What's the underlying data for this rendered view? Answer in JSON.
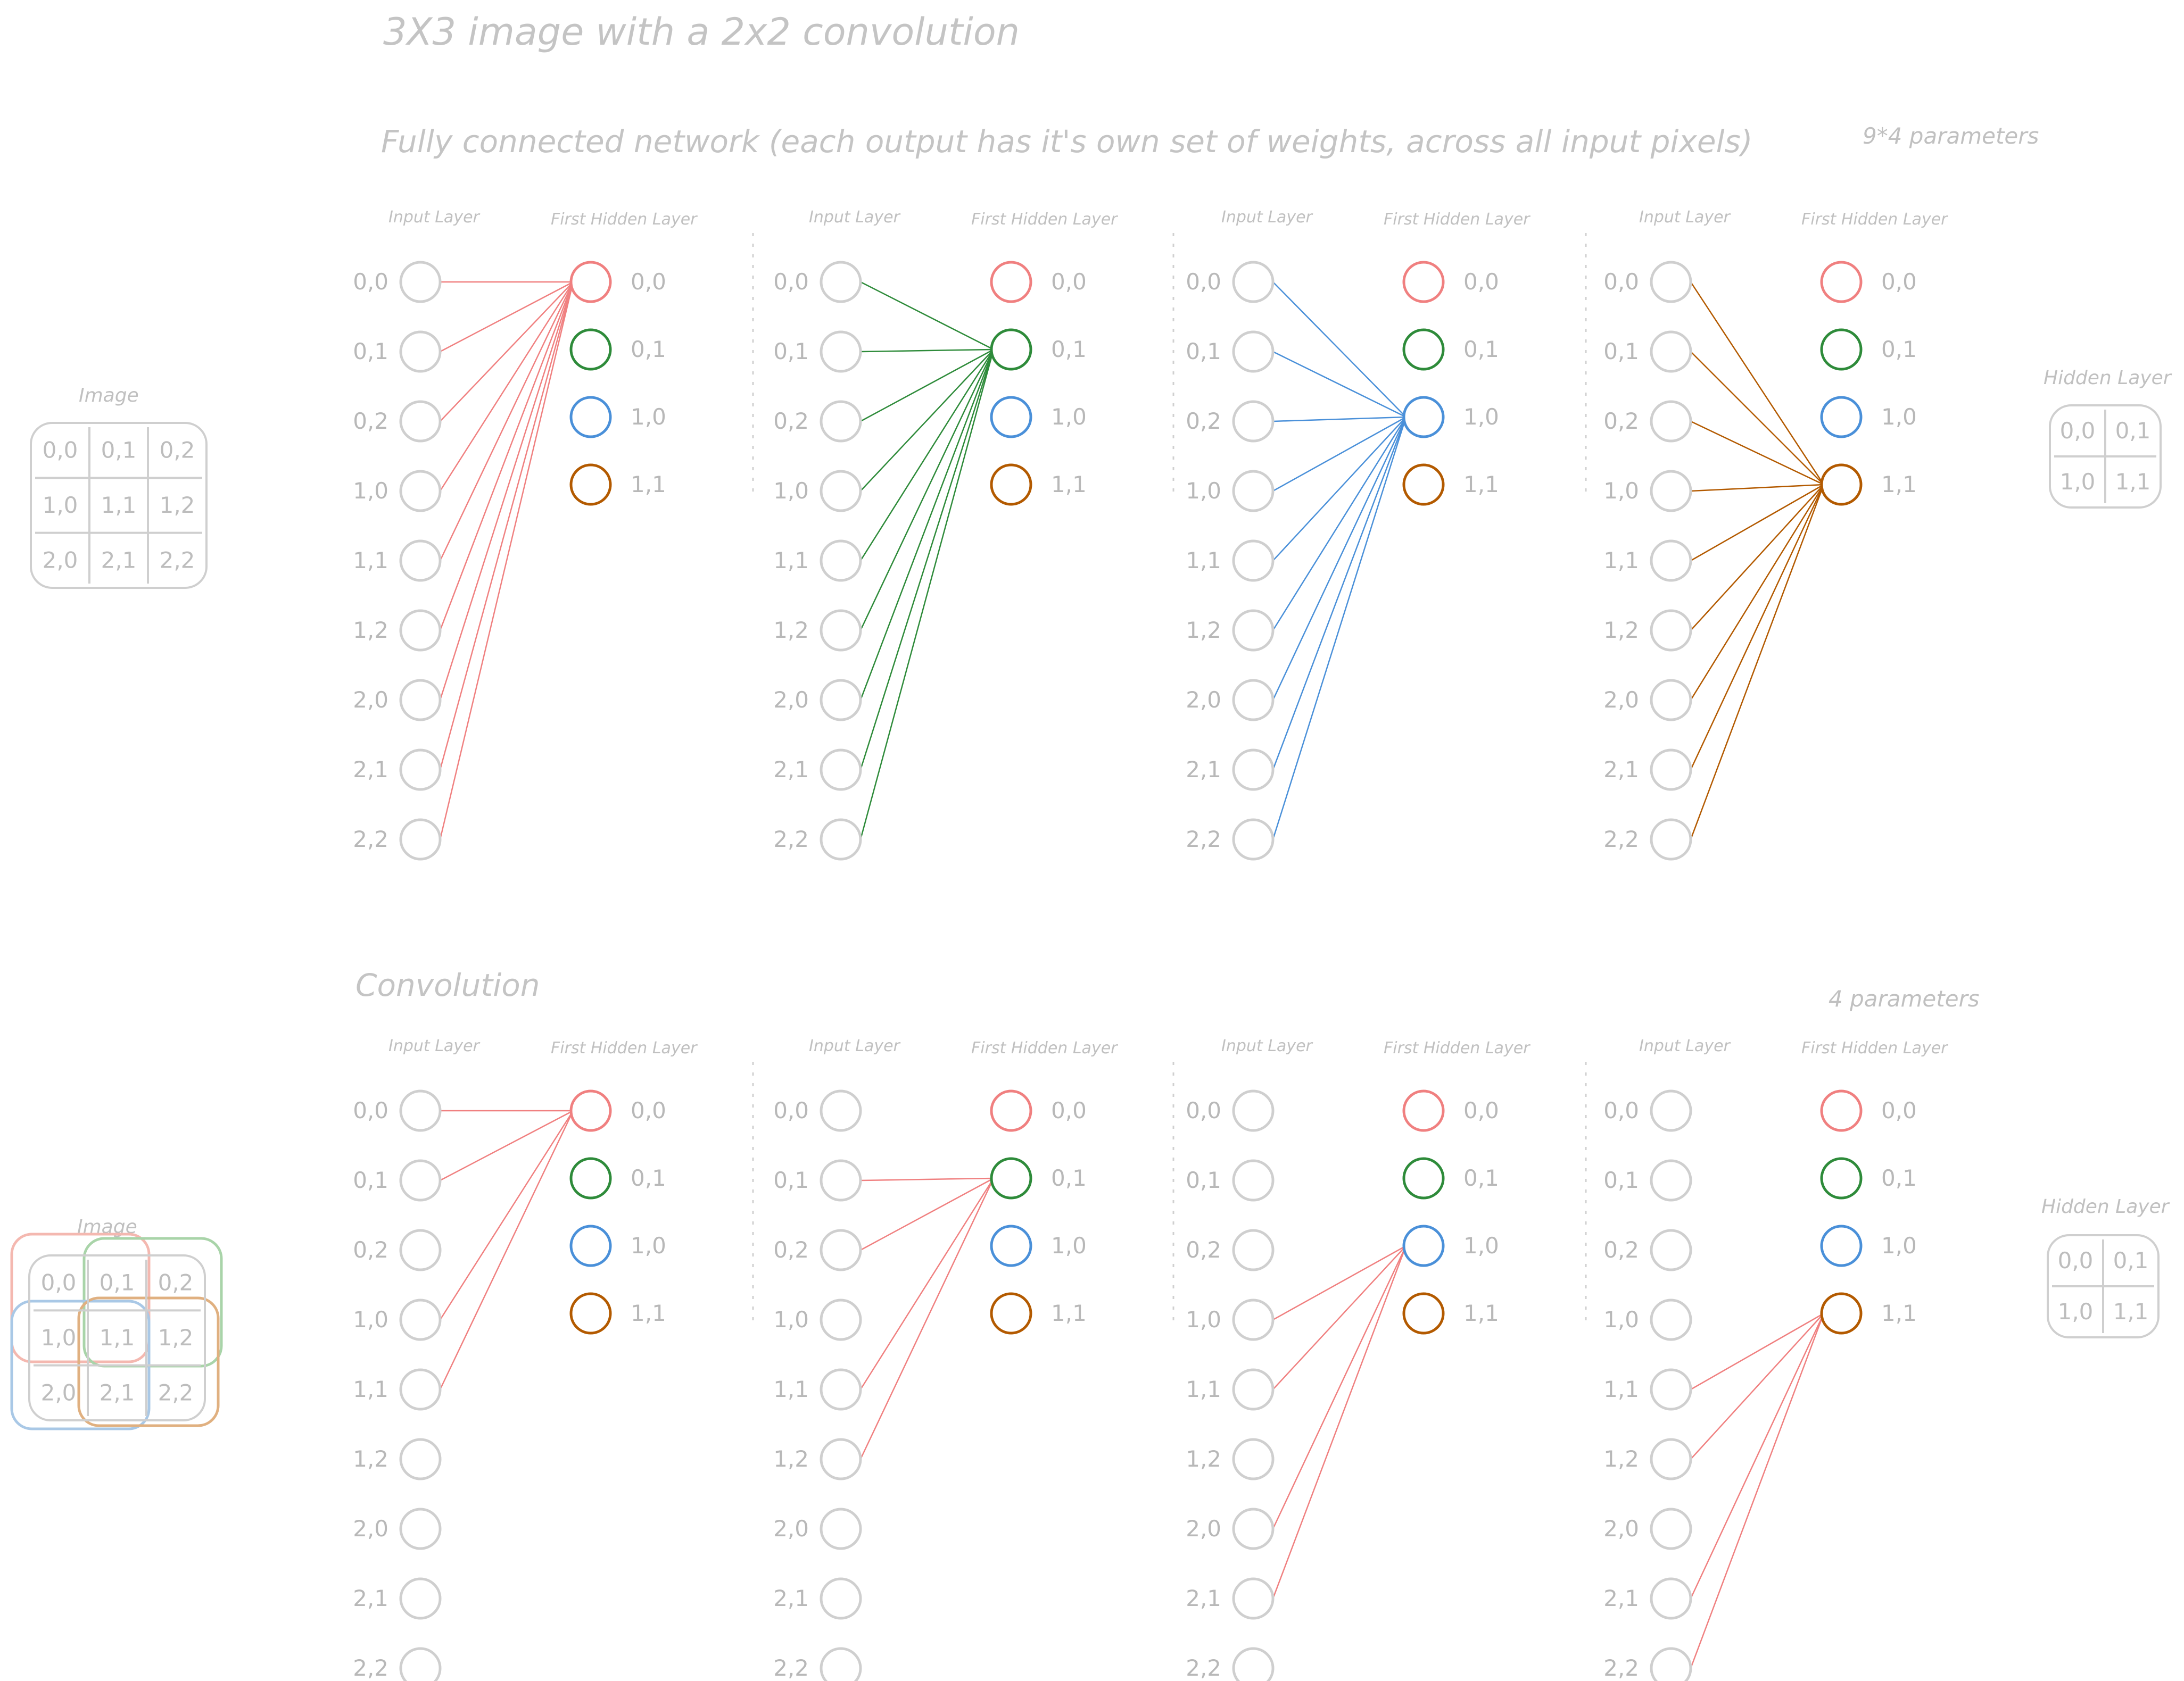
{
  "title": "3X3 image with a 2x2 convolution",
  "sections": {
    "fully_connected": {
      "heading": "Fully connected network (each output has it's own set of weights, across all input pixels)",
      "params": "9*4 parameters"
    },
    "convolution": {
      "heading": "Convolution",
      "params": "4 parameters"
    }
  },
  "layer_headers": {
    "input": "Input Layer",
    "hidden": "First Hidden Layer"
  },
  "input_labels": [
    "0,0",
    "0,1",
    "0,2",
    "1,0",
    "1,1",
    "1,2",
    "2,0",
    "2,1",
    "2,2"
  ],
  "hidden_labels": [
    "0,0",
    "0,1",
    "1,0",
    "1,1"
  ],
  "colors": {
    "neutral": "#cfcfcf",
    "hidden": [
      "#f08080",
      "#2e8b3a",
      "#4a90d9",
      "#b35a00"
    ],
    "conv_edges": "#f08080",
    "conv_windows": [
      "#f4b8b0",
      "#a9d4a9",
      "#a9c8e6",
      "#e0b080"
    ]
  },
  "image_grid": {
    "title": "Image",
    "cells": [
      [
        "0,0",
        "0,1",
        "0,2"
      ],
      [
        "1,0",
        "1,1",
        "1,2"
      ],
      [
        "2,0",
        "2,1",
        "2,2"
      ]
    ]
  },
  "hidden_grid": {
    "title": "Hidden Layer",
    "cells": [
      [
        "0,0",
        "0,1"
      ],
      [
        "1,0",
        "1,1"
      ]
    ]
  },
  "fc_connections": [
    [
      0,
      1,
      2,
      3,
      4,
      5,
      6,
      7,
      8
    ],
    [
      0,
      1,
      2,
      3,
      4,
      5,
      6,
      7,
      8
    ],
    [
      0,
      1,
      2,
      3,
      4,
      5,
      6,
      7,
      8
    ],
    [
      0,
      1,
      2,
      3,
      4,
      5,
      6,
      7,
      8
    ]
  ],
  "conv_connections": [
    [
      0,
      1,
      3,
      4
    ],
    [
      1,
      2,
      4,
      5
    ],
    [
      3,
      4,
      6,
      7
    ],
    [
      4,
      5,
      7,
      8
    ]
  ]
}
